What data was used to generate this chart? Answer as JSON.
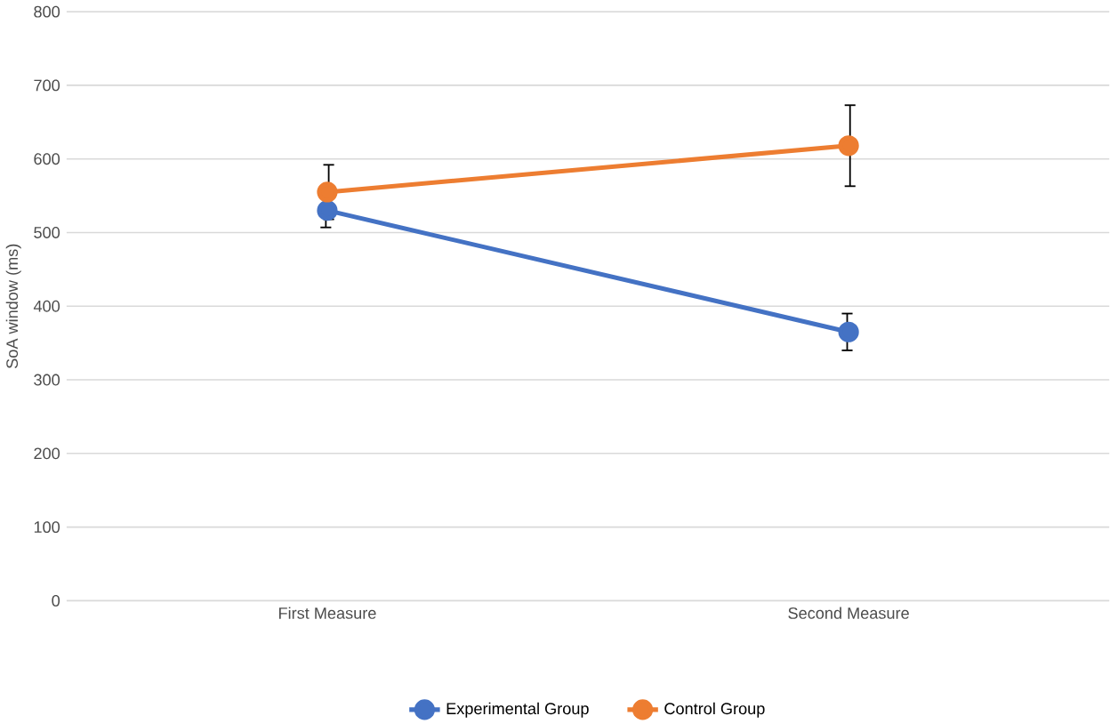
{
  "chart_data": {
    "type": "line",
    "ylabel": "SoA window (ms)",
    "categories": [
      "First Measure",
      "Second Measure"
    ],
    "series": [
      {
        "name": "Experimental Group",
        "color": "#4472c4",
        "values": [
          530,
          365
        ],
        "errors": [
          23,
          25
        ]
      },
      {
        "name": "Control Group",
        "color": "#ed7d31",
        "values": [
          555,
          618
        ],
        "errors": [
          37,
          55
        ]
      }
    ],
    "ylim": [
      0,
      800
    ],
    "yticks": [
      0,
      100,
      200,
      300,
      400,
      500,
      600,
      700,
      800
    ],
    "grid": "y",
    "legend": "bottom",
    "marker": "circle",
    "line_style": "solid"
  }
}
